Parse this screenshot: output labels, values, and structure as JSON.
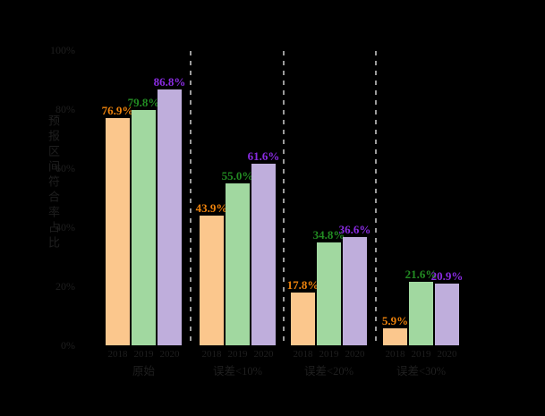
{
  "chart_data": {
    "type": "bar",
    "ylabel": "预报区间符合率占比",
    "categories": [
      "原始",
      "误差<10%",
      "误差<20%",
      "误差<30%"
    ],
    "series": [
      {
        "name": "2018",
        "bar_color": "#FBC78D",
        "label_color": "#ED820C",
        "values": [
          76.9,
          43.9,
          17.8,
          5.9
        ]
      },
      {
        "name": "2019",
        "bar_color": "#A1D8A0",
        "label_color": "#228B22",
        "values": [
          79.8,
          55.0,
          34.8,
          21.6
        ]
      },
      {
        "name": "2020",
        "bar_color": "#BFAEDC",
        "label_color": "#8A2BE2",
        "values": [
          86.8,
          61.6,
          36.6,
          20.9
        ]
      }
    ],
    "y_ticks": [
      "0%",
      "20%",
      "40%",
      "60%",
      "80%",
      "100%"
    ],
    "y_tick_values": [
      0,
      20,
      40,
      60,
      80,
      100
    ],
    "ylim": [
      0,
      100
    ],
    "value_label_suffix": "%",
    "group_separators": "dashed",
    "separator_color": "#9b9b9b",
    "axis_text_color": "#1f1f1f",
    "background": "#000000",
    "legend": "none"
  }
}
